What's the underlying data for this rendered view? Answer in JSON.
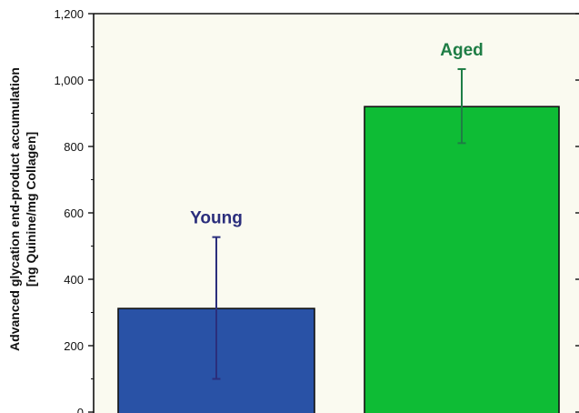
{
  "chart_data": {
    "type": "bar",
    "categories": [
      "Young",
      "Aged"
    ],
    "values": [
      312,
      920
    ],
    "error_low": [
      100,
      810
    ],
    "error_high": [
      527,
      1033
    ],
    "bar_colors": [
      "#2952a6",
      "#0ebc35"
    ],
    "label_colors": [
      "#2b2e7c",
      "#1e7d45"
    ],
    "plot_background": "#fafaf0",
    "ylabel_lines": [
      "Advanced glycation end-product accumulation",
      "[ng Quinine/mg Collagen]"
    ],
    "ylim": [
      0,
      1200
    ],
    "yticks": [
      0,
      200,
      400,
      600,
      800,
      1000,
      1200
    ],
    "ytick_labels": [
      "0",
      "200",
      "400",
      "600",
      "800",
      "1,000",
      "1,200"
    ],
    "grid": false
  }
}
